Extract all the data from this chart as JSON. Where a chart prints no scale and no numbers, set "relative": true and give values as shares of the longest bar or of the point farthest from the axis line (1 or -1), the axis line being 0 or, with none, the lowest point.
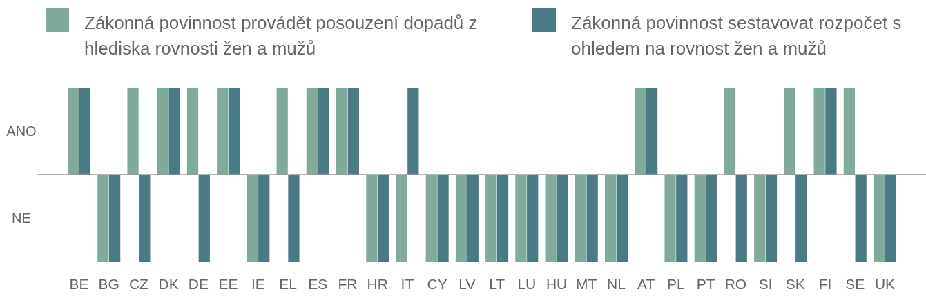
{
  "chart_data": {
    "type": "bar",
    "relative": true,
    "categories": [
      "BE",
      "BG",
      "CZ",
      "DK",
      "DE",
      "EE",
      "IE",
      "EL",
      "ES",
      "FR",
      "HR",
      "IT",
      "CY",
      "LV",
      "LT",
      "LU",
      "HU",
      "MT",
      "NL",
      "AT",
      "PL",
      "PT",
      "RO",
      "SI",
      "SK",
      "FI",
      "SE",
      "UK"
    ],
    "series": [
      {
        "name": "Zákonná povinnost provádět posouzení dopadů z hlediska rovnosti žen a mužů",
        "color": "#80ab9b",
        "values": [
          1,
          -1,
          1,
          1,
          1,
          1,
          -1,
          1,
          1,
          1,
          -1,
          -1,
          -1,
          -1,
          -1,
          -1,
          -1,
          -1,
          -1,
          1,
          -1,
          -1,
          1,
          -1,
          1,
          1,
          1,
          -1
        ]
      },
      {
        "name": "Zákonná povinnost sestavovat rozpočet s ohledem na rovnost žen a mužů",
        "color": "#4a7b84",
        "values": [
          1,
          -1,
          -1,
          1,
          -1,
          1,
          -1,
          -1,
          1,
          1,
          -1,
          1,
          -1,
          -1,
          -1,
          -1,
          -1,
          -1,
          -1,
          1,
          -1,
          -1,
          -1,
          -1,
          -1,
          1,
          -1,
          -1
        ]
      }
    ],
    "annotations": [
      "ANO",
      "NE"
    ],
    "legend": "top"
  }
}
